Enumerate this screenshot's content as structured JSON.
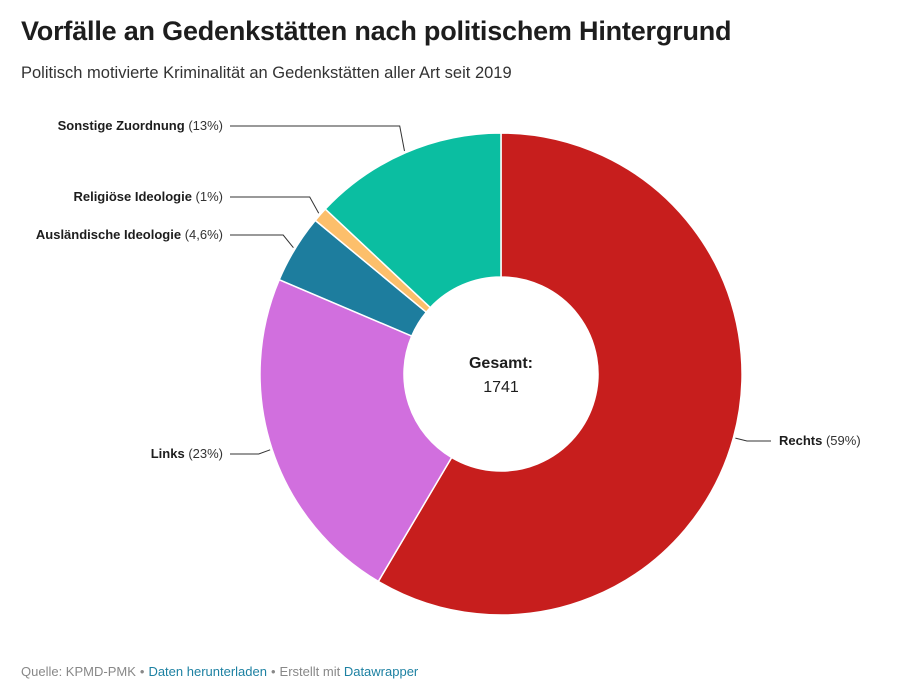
{
  "header": {
    "title": "Vorfälle an Gedenkstätten nach politischem Hintergrund",
    "subtitle": "Politisch motivierte Kriminalität an Gedenkstätten aller Art seit 2019"
  },
  "chart_data": {
    "type": "pie",
    "variant": "donut",
    "title": "Vorfälle an Gedenkstätten nach politischem Hintergrund",
    "subtitle": "Politisch motivierte Kriminalität an Gedenkstätten aller Art seit 2019",
    "center": {
      "label": "Gesamt:",
      "value": "1741"
    },
    "slices": [
      {
        "name": "Rechts",
        "pct_label": "(59%)",
        "value": 58.5,
        "color": "#c71e1d"
      },
      {
        "name": "Links",
        "pct_label": "(23%)",
        "value": 22.9,
        "color": "#d16fde"
      },
      {
        "name": "Ausländische Ideologie",
        "pct_label": "(4,6%)",
        "value": 4.6,
        "color": "#1d7d9e"
      },
      {
        "name": "Religiöse Ideologie",
        "pct_label": "(1%)",
        "value": 1.0,
        "color": "#fcbf6b"
      },
      {
        "name": "Sonstige Zuordnung",
        "pct_label": "(13%)",
        "value": 13.0,
        "color": "#0bbea1"
      }
    ]
  },
  "footer": {
    "source": "Quelle: KPMD-PMK",
    "sep": "•",
    "download_label": "Daten herunterladen",
    "created_with": "Erstellt mit",
    "tool_label": "Datawrapper"
  }
}
